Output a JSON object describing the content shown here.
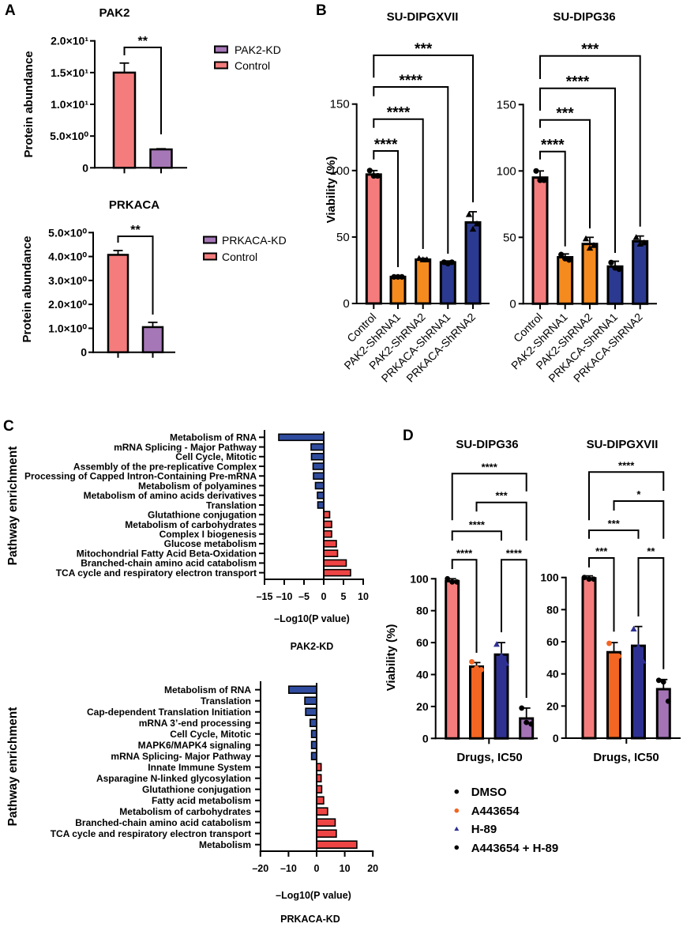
{
  "panels": {
    "A": "A",
    "B": "B",
    "C": "C",
    "D": "D"
  },
  "panel_d": {
    "legend": [
      {
        "label": "DMSO",
        "marker": "circle",
        "color": "#000000"
      },
      {
        "label": "A443654",
        "marker": "circle",
        "color": "#F26522"
      },
      {
        "label": "H-89",
        "marker": "triangle",
        "color": "#2E3192"
      },
      {
        "label": "A443654 + H-89",
        "marker": "circle",
        "color": "#000000"
      }
    ]
  },
  "chart_data": [
    {
      "panel": "A",
      "type": "bar",
      "title": "PAK2",
      "xlabel": "",
      "ylabel": "Protein abundance",
      "ylim": [
        0,
        20
      ],
      "yticks": [
        0,
        5,
        10,
        15,
        20
      ],
      "ytick_labels": [
        "0",
        "5.0×10⁰",
        "1.0×10¹",
        "1.5×10¹",
        "2.0×10¹"
      ],
      "categories": [
        "Control",
        "PAK2-KD"
      ],
      "values": [
        15.0,
        2.9
      ],
      "errors": [
        1.5,
        0.1
      ],
      "colors": [
        "#F47C7C",
        "#A677B7"
      ],
      "legend": [
        {
          "label": "PAK2-KD",
          "color": "#A677B7"
        },
        {
          "label": "Control",
          "color": "#F47C7C"
        }
      ],
      "legend_position": "right",
      "significance": [
        {
          "from": 0,
          "to": 1,
          "label": "**"
        }
      ]
    },
    {
      "panel": "A",
      "type": "bar",
      "title": "PRKACA",
      "xlabel": "",
      "ylabel": "Protein abundance",
      "ylim": [
        0,
        5
      ],
      "yticks": [
        0,
        1,
        2,
        3,
        4,
        5
      ],
      "ytick_labels": [
        "0",
        "1.0×10⁰",
        "2.0×10⁰",
        "3.0×10⁰",
        "4.0×10⁰",
        "5.0×10⁰"
      ],
      "categories": [
        "Control",
        "PRKACA-KD"
      ],
      "values": [
        4.07,
        1.05
      ],
      "errors": [
        0.18,
        0.2
      ],
      "colors": [
        "#F47C7C",
        "#A677B7"
      ],
      "legend": [
        {
          "label": "PRKACA-KD",
          "color": "#A677B7"
        },
        {
          "label": "Control",
          "color": "#F47C7C"
        }
      ],
      "legend_position": "right",
      "significance": [
        {
          "from": 0,
          "to": 1,
          "label": "**"
        }
      ]
    },
    {
      "panel": "B",
      "type": "bar",
      "title": "SU-DIPGXVII",
      "xlabel": "",
      "ylabel": "Viability (%)",
      "ylim": [
        0,
        150
      ],
      "yticks": [
        0,
        50,
        100,
        150
      ],
      "ytick_labels": [
        "0",
        "50",
        "100",
        "150"
      ],
      "categories": [
        "Control",
        "PAK2-ShRNA1",
        "PAK2-ShRNA2",
        "PRKACA-ShRNA1",
        "PRKACA-ShRNA2"
      ],
      "values": [
        97,
        20,
        33,
        31,
        61
      ],
      "errors": [
        3,
        1,
        1,
        1,
        8
      ],
      "colors": [
        "#F47C7C",
        "#F58A1F",
        "#F58A1F",
        "#2B3990",
        "#2B3990"
      ],
      "markers": [
        "circle",
        "circle",
        "triangle",
        "circle",
        "triangle"
      ],
      "point_colors": [
        "#000000",
        "#000000",
        "#000000",
        "#000000",
        "#000000"
      ],
      "points": [
        [
          100,
          96,
          96
        ],
        [
          20,
          20,
          20
        ],
        [
          34,
          33,
          33
        ],
        [
          31,
          30,
          31
        ],
        [
          67,
          56,
          60
        ]
      ],
      "significance": [
        {
          "from": 0,
          "to": 1,
          "label": "****"
        },
        {
          "from": 0,
          "to": 2,
          "label": "****"
        },
        {
          "from": 0,
          "to": 3,
          "label": "****"
        },
        {
          "from": 0,
          "to": 4,
          "label": "***"
        }
      ]
    },
    {
      "panel": "B",
      "type": "bar",
      "title": "SU-DIPG36",
      "xlabel": "",
      "ylabel": "",
      "ylim": [
        0,
        150
      ],
      "yticks": [
        0,
        50,
        100,
        150
      ],
      "ytick_labels": [
        "0",
        "50",
        "100",
        "150"
      ],
      "categories": [
        "Control",
        "PAK2-ShRNA1",
        "PAK2-ShRNA2",
        "PRKACA-ShRNA1",
        "PRKACA-ShRNA2"
      ],
      "values": [
        95,
        35,
        45,
        28,
        47
      ],
      "errors": [
        5,
        2.5,
        5,
        4,
        4
      ],
      "colors": [
        "#F47C7C",
        "#F58A1F",
        "#F58A1F",
        "#2B3990",
        "#2B3990"
      ],
      "markers": [
        "circle",
        "circle",
        "triangle",
        "circle",
        "triangle"
      ],
      "point_colors": [
        "#000000",
        "#000000",
        "#000000",
        "#000000",
        "#000000"
      ],
      "points": [
        [
          100,
          93,
          93
        ],
        [
          37,
          34,
          33
        ],
        [
          49,
          42,
          44
        ],
        [
          31,
          27,
          26
        ],
        [
          50,
          45,
          46
        ]
      ],
      "significance": [
        {
          "from": 0,
          "to": 1,
          "label": "****"
        },
        {
          "from": 0,
          "to": 2,
          "label": "***"
        },
        {
          "from": 0,
          "to": 3,
          "label": "****"
        },
        {
          "from": 0,
          "to": 4,
          "label": "***"
        }
      ]
    },
    {
      "panel": "C",
      "type": "bar",
      "orientation": "horizontal",
      "condition": "PAK2-KD",
      "xlabel": "–Log10(P value)",
      "ylabel": "Pathway enrichment",
      "xlim": [
        -15,
        10
      ],
      "xticks": [
        -15,
        -10,
        -5,
        0,
        5,
        10
      ],
      "xtick_labels": [
        "–15",
        "–10",
        "–5",
        "0",
        "5",
        "10"
      ],
      "negative_color": "#2F4C9E",
      "positive_color": "#EE4444",
      "categories": [
        "Metabolism of RNA",
        "mRNA Splicing - Major Pathway",
        "Cell Cycle, Mitotic",
        "Assembly of the pre-replicative Complex",
        "Processing of Capped Intron-Containing Pre-mRNA",
        "Metabolism of polyamines",
        "Metabolism of amino acids derivatives",
        "Translation",
        "Glutathione conjugation",
        "Metabolism of carbohydrates",
        "Complex I biogenesis",
        "Glucose metabolism",
        "Mitochondrial Fatty Acid Beta-Oxidation",
        "Branched-chain amino acid catabolism",
        "TCA cycle and respiratory electron transport"
      ],
      "values": [
        -11.4,
        -3.2,
        -3.1,
        -2.7,
        -2.6,
        -2.1,
        -1.6,
        -1.5,
        1.5,
        2.0,
        2.0,
        3.2,
        3.5,
        5.7,
        6.8
      ]
    },
    {
      "panel": "C",
      "type": "bar",
      "orientation": "horizontal",
      "condition": "PRKACA-KD",
      "xlabel": "–Log10(P value)",
      "ylabel": "Pathway enrichment",
      "xlim": [
        -20,
        20
      ],
      "xticks": [
        -20,
        -10,
        0,
        10,
        20
      ],
      "xtick_labels": [
        "–20",
        "–10",
        "0",
        "10",
        "20"
      ],
      "negative_color": "#2F4C9E",
      "positive_color": "#EE4444",
      "categories": [
        "Metabolism of RNA",
        "Translation",
        "Cap-dependent Translation Initiation",
        "mRNA 3’-end processing",
        "Cell Cycle, Mitotic",
        "MAPK6/MAPK4 signaling",
        "mRNA Splicing- Major Pathway",
        "Innate Immune System",
        "Asparagine N-linked glycosylation",
        "Glutathione conjugation",
        "Fatty acid metabolism",
        "Metabolism of carbohydrates",
        "Branched-chain amino acid catabolism",
        "TCA cycle and respiratory electron transport",
        "Metabolism"
      ],
      "values": [
        -9.9,
        -4.2,
        -3.9,
        -2.3,
        -1.8,
        -1.8,
        -1.8,
        1.6,
        1.6,
        1.8,
        2.5,
        3.9,
        6.6,
        7.0,
        14.3
      ]
    },
    {
      "panel": "D",
      "type": "bar",
      "title": "SU-DIPG36",
      "xlabel": "Drugs, IC50",
      "ylabel": "Viability (%)",
      "ylim": [
        0,
        100
      ],
      "yticks": [
        0,
        20,
        40,
        60,
        80,
        100
      ],
      "ytick_labels": [
        "0",
        "20",
        "40",
        "60",
        "80",
        "100"
      ],
      "categories": [
        "DMSO",
        "A443654",
        "H-89",
        "A443654 + H-89"
      ],
      "values": [
        98.5,
        45,
        52.5,
        12.5
      ],
      "errors": [
        1.5,
        2.5,
        7.5,
        6.5
      ],
      "colors": [
        "#F47C7C",
        "#F26522",
        "#2E3192",
        "#A473B5"
      ],
      "markers": [
        "circle",
        "circle",
        "triangle",
        "circle"
      ],
      "point_colors": [
        "#000000",
        "#F26522",
        "#2E3192",
        "#000000"
      ],
      "points": [
        [
          100,
          98,
          98
        ],
        [
          48,
          44,
          43
        ],
        [
          59,
          52,
          47
        ],
        [
          19,
          10,
          9
        ]
      ],
      "significance": [
        {
          "from": 0,
          "to": 3,
          "label": "****"
        },
        {
          "from": 1,
          "to": 3,
          "label": "***"
        },
        {
          "from": 0,
          "to": 2,
          "label": "****"
        },
        {
          "from": 0,
          "to": 1,
          "label": "****"
        },
        {
          "from": 2,
          "to": 3,
          "label": "****"
        }
      ]
    },
    {
      "panel": "D",
      "type": "bar",
      "title": "SU-DIPGXVII",
      "xlabel": "Drugs, IC50",
      "ylabel": "",
      "ylim": [
        0,
        100
      ],
      "yticks": [
        0,
        20,
        40,
        60,
        80,
        100
      ],
      "ytick_labels": [
        "0",
        "20",
        "40",
        "60",
        "80",
        "100"
      ],
      "categories": [
        "DMSO",
        "A443654",
        "H-89",
        "A443654 + H-89"
      ],
      "values": [
        99.5,
        53.5,
        57.5,
        30.5
      ],
      "errors": [
        1.5,
        6,
        12,
        6
      ],
      "colors": [
        "#F47C7C",
        "#F26522",
        "#2E3192",
        "#A473B5"
      ],
      "markers": [
        "circle",
        "circle",
        "triangle",
        "circle"
      ],
      "point_colors": [
        "#000000",
        "#F26522",
        "#2E3192",
        "#000000"
      ],
      "points": [
        [
          100,
          99,
          99
        ],
        [
          59,
          51,
          51
        ],
        [
          68,
          57,
          48
        ],
        [
          36,
          35,
          23
        ]
      ],
      "significance": [
        {
          "from": 0,
          "to": 3,
          "label": "****"
        },
        {
          "from": 1,
          "to": 3,
          "label": "*"
        },
        {
          "from": 0,
          "to": 2,
          "label": "***"
        },
        {
          "from": 0,
          "to": 1,
          "label": "***"
        },
        {
          "from": 2,
          "to": 3,
          "label": "**"
        }
      ]
    }
  ]
}
